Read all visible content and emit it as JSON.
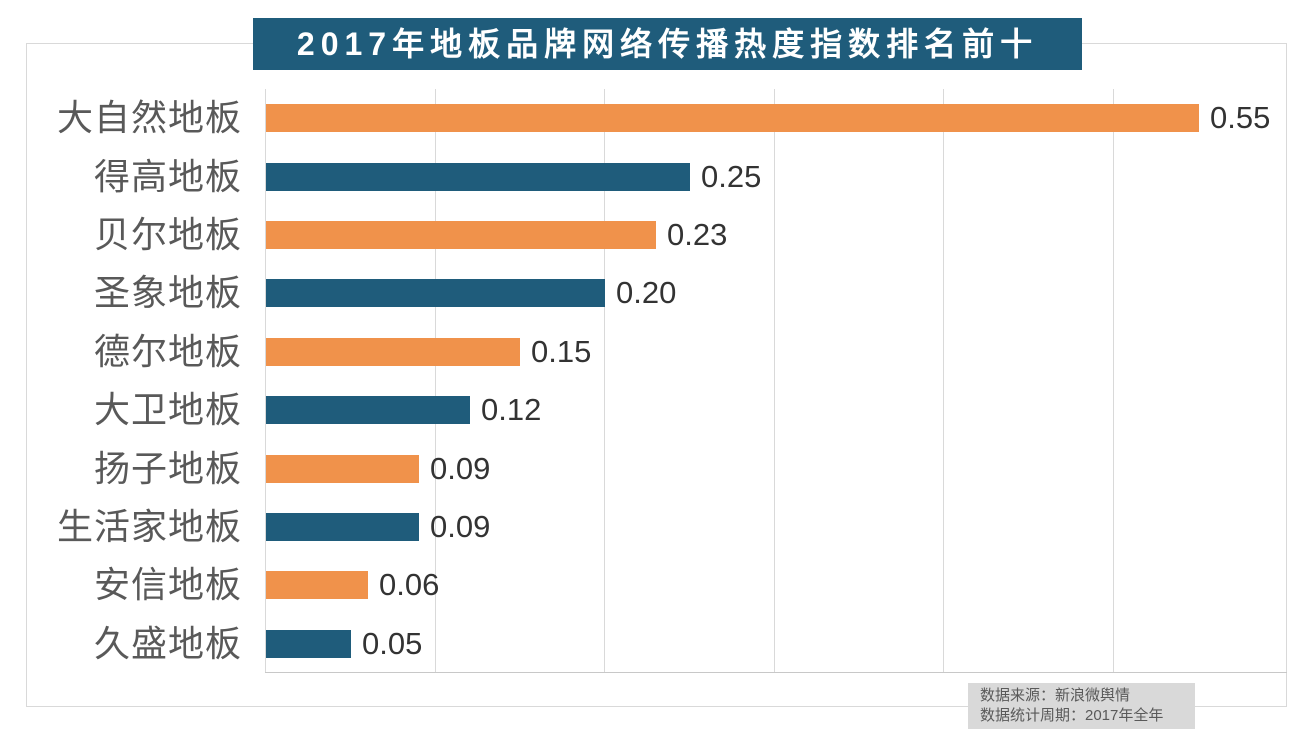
{
  "chart_data": {
    "type": "bar",
    "orientation": "horizontal",
    "title": "2017年地板品牌网络传播热度指数排名前十",
    "categories": [
      "大自然地板",
      "得高地板",
      "贝尔地板",
      "圣象地板",
      "德尔地板",
      "大卫地板",
      "扬子地板",
      "生活家地板",
      "安信地板",
      "久盛地板"
    ],
    "values": [
      0.55,
      0.25,
      0.23,
      0.2,
      0.15,
      0.12,
      0.09,
      0.09,
      0.06,
      0.05
    ],
    "value_labels": [
      "0.55",
      "0.25",
      "0.23",
      "0.20",
      "0.15",
      "0.12",
      "0.09",
      "0.09",
      "0.06",
      "0.05"
    ],
    "bar_colors": [
      "#F0924B",
      "#1F5C7B",
      "#F0924B",
      "#1F5C7B",
      "#F0924B",
      "#1F5C7B",
      "#F0924B",
      "#1F5C7B",
      "#F0924B",
      "#1F5C7B"
    ],
    "xlim": [
      0,
      0.6
    ],
    "grid": {
      "vertical": true,
      "interval": 0.1,
      "color": "#D9D9D9"
    },
    "legend": "none",
    "data_labels": "end-of-bar"
  },
  "footer": {
    "lines": [
      "数据来源：新浪微舆情",
      "数据统计周期：2017年全年"
    ]
  },
  "colors": {
    "title_bg": "#1F5C7B",
    "title_text": "#FFFFFF",
    "bar_orange": "#F0924B",
    "bar_teal": "#1F5C7B",
    "category_label": "#595959",
    "value_label": "#333333",
    "gridline": "#D9D9D9",
    "frame_border": "#D9D9D9",
    "axis_line": "#C8C8C8",
    "footer_bg": "#D9D9D9",
    "footer_text": "#595959",
    "background": "#FFFFFF"
  }
}
